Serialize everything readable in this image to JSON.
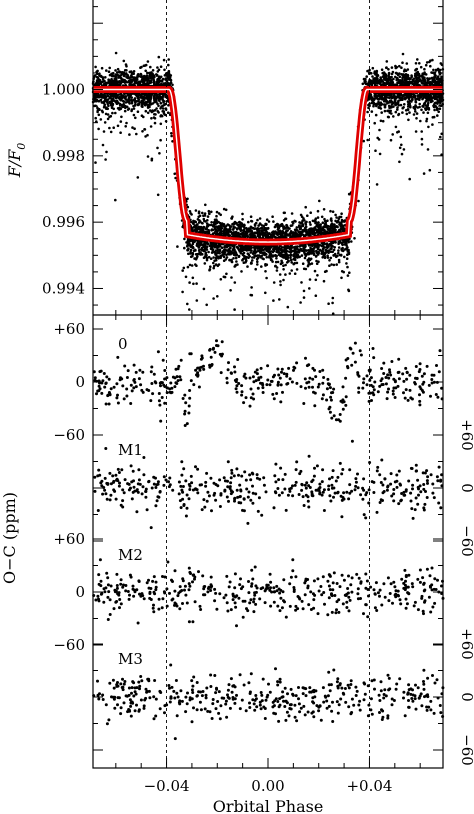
{
  "chart_data": [
    {
      "type": "scatter",
      "panel": "light-curve",
      "xlabel": "Orbital Phase",
      "ylabel": "F/F",
      "ylabel_subscript": "0",
      "xlim": [
        -0.069,
        0.069
      ],
      "ylim": [
        0.9932,
        1.0027
      ],
      "yticks": [
        {
          "value": 0.994,
          "label": "0.994"
        },
        {
          "value": 0.996,
          "label": "0.996"
        },
        {
          "value": 0.998,
          "label": "0.998"
        },
        {
          "value": 1.0,
          "label": "1.000"
        }
      ],
      "series": [
        {
          "kind": "observations",
          "color": "#000000"
        },
        {
          "kind": "model",
          "color": "#e00000",
          "highlight": "#ffffff"
        }
      ],
      "model": {
        "baseline": 1.0,
        "depth": 0.0046,
        "ingress_start": -0.039,
        "full_start": -0.032,
        "full_end": 0.032,
        "egress_end": 0.039
      },
      "reference_lines_x": [
        -0.04,
        0.04
      ]
    },
    {
      "type": "scatter",
      "panel": "residuals",
      "xlabel": "Orbital Phase",
      "ylabel": "O−C (ppm)",
      "xlim": [
        -0.069,
        0.069
      ],
      "xticks": [
        {
          "value": -0.04,
          "label": "−0.04"
        },
        {
          "value": 0.0,
          "label": "0.00"
        },
        {
          "value": 0.04,
          "label": "+0.04"
        }
      ],
      "left_yticks": [
        {
          "row": "0",
          "value": 60,
          "label": "+60"
        },
        {
          "row": "0",
          "value": 0,
          "label": "0"
        },
        {
          "row": "0",
          "value": -60,
          "label": "−60"
        },
        {
          "row": "M2",
          "value": 60,
          "label": "+60"
        },
        {
          "row": "M2",
          "value": 0,
          "label": "0"
        },
        {
          "row": "M2",
          "value": -60,
          "label": "−60"
        }
      ],
      "right_yticks": [
        {
          "row": "M1",
          "value": 60,
          "label": "+60"
        },
        {
          "row": "M1",
          "value": 0,
          "label": "0"
        },
        {
          "row": "M1",
          "value": -60,
          "label": "−60"
        },
        {
          "row": "M3",
          "value": 60,
          "label": "+60"
        },
        {
          "row": "M3",
          "value": 0,
          "label": "0"
        },
        {
          "row": "M3",
          "value": -60,
          "label": "−60"
        }
      ],
      "rows": [
        {
          "label": "0",
          "scatter_ppm": 13
        },
        {
          "label": "M1",
          "scatter_ppm": 13
        },
        {
          "label": "M2",
          "scatter_ppm": 13
        },
        {
          "label": "M3",
          "scatter_ppm": 13
        }
      ],
      "reference_lines_x": [
        -0.04,
        0.04
      ]
    }
  ]
}
